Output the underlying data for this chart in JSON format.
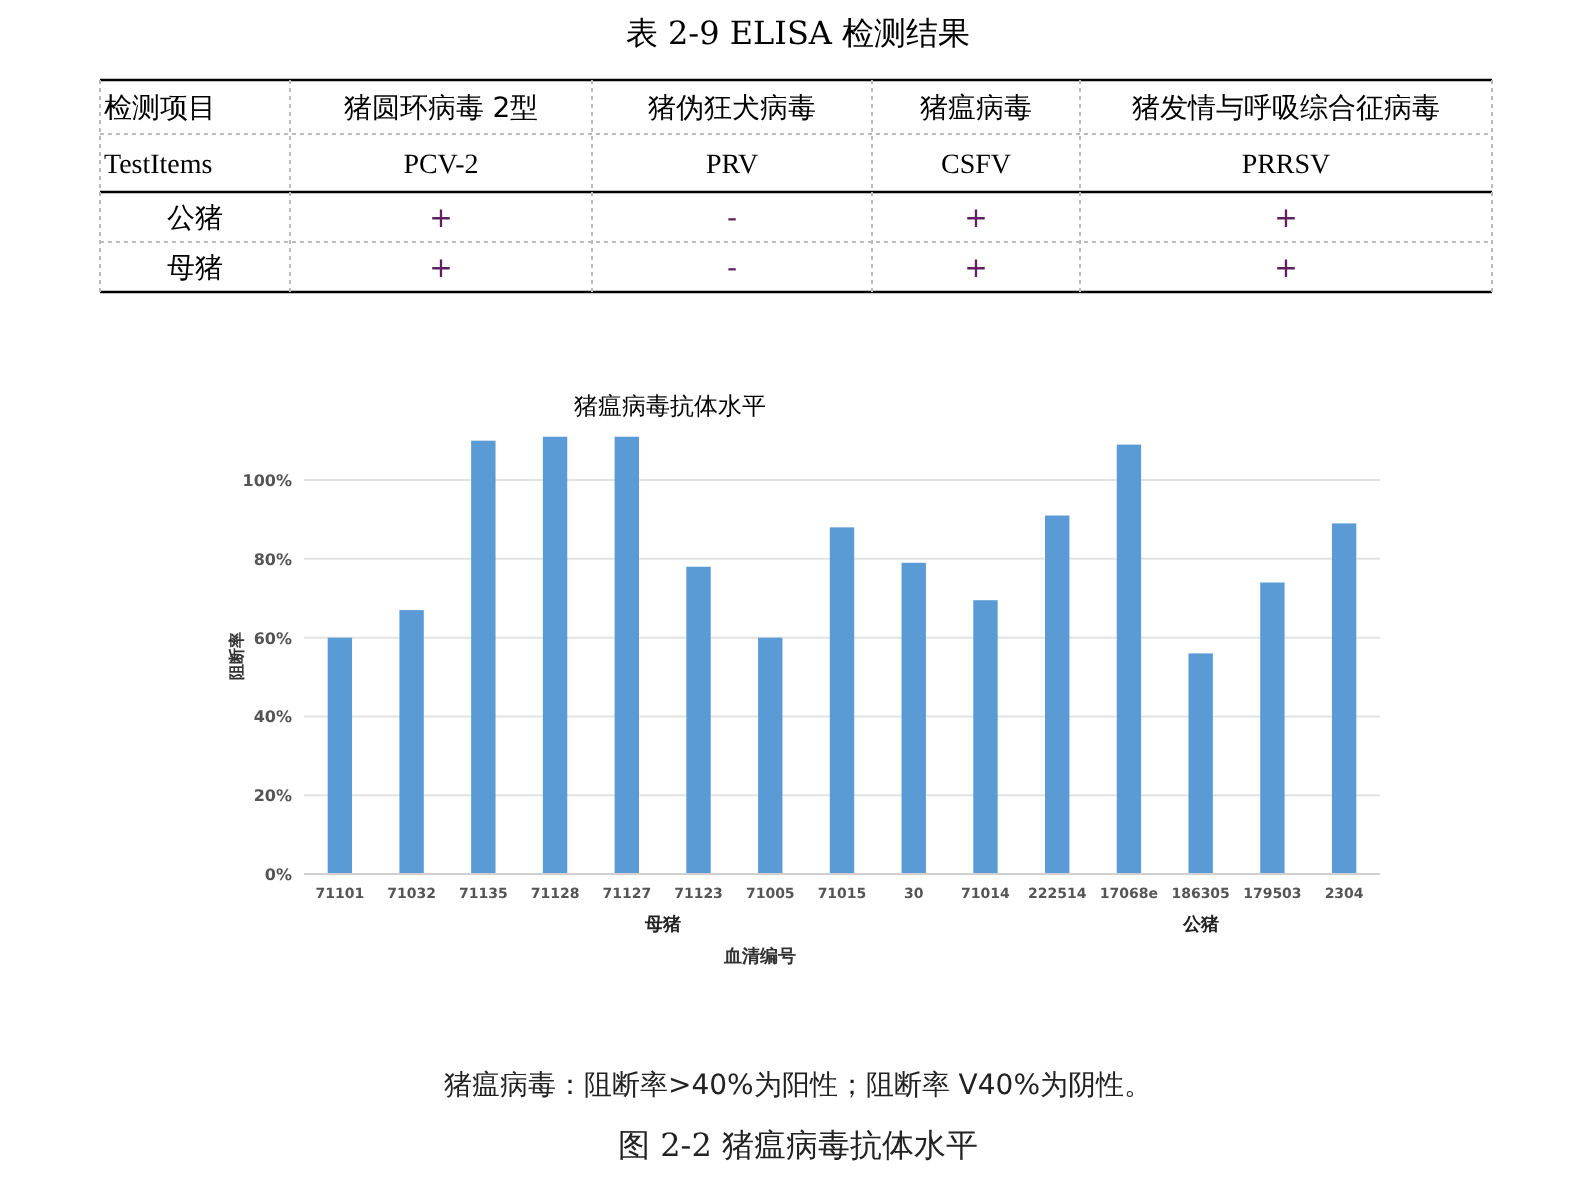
{
  "chart_data": [
    {
      "type": "other",
      "title": "表 2-9 ELISA 检测结果",
      "categories": [
        "检测项目",
        "猪圆环病毒 2型",
        "猪伪狂犬病毒",
        "猪瘟病毒",
        "猪发情与呼吸综合征病毒"
      ],
      "annotations": [
        "TestItems",
        "PCV-2",
        "PRV",
        "CSFV",
        "PRRSV",
        "公猪",
        "+",
        "-",
        "+",
        "+",
        "母猪",
        "+",
        "-",
        "+",
        "+"
      ]
    },
    {
      "type": "bar",
      "title": "猪瘟病毒抗体水平",
      "xlabel": "血清编号",
      "ylabel": "阻断率",
      "categories": [
        "71101",
        "71032",
        "71135",
        "71128",
        "71127",
        "71123",
        "71005",
        "71015",
        "30",
        "71014",
        "222514",
        "17068e",
        "186305",
        "179503",
        "2304"
      ],
      "values": [
        60,
        67,
        110,
        111,
        111,
        78,
        60,
        88,
        79,
        69.5,
        91,
        109,
        56,
        74,
        89
      ],
      "color": "#5b9bd5",
      "ylim": [
        0,
        112
      ],
      "yticks": [
        {
          "value": 0,
          "label": "0%"
        },
        {
          "value": 20,
          "label": "20%"
        },
        {
          "value": 40,
          "label": "40%"
        },
        {
          "value": 60,
          "label": "60%"
        },
        {
          "value": 80,
          "label": "80%"
        },
        {
          "value": 100,
          "label": "100%"
        }
      ],
      "grid": "y",
      "annotations": [
        "母猪",
        "公猪",
        "猪瘟病毒：阻断率>40%为阳性；阻断率 V40%为阴性。",
        "图 2-2 猪瘟病毒抗体水平"
      ]
    }
  ]
}
